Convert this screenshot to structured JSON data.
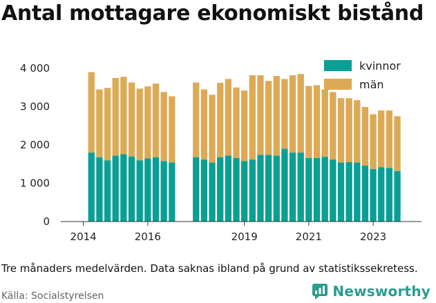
{
  "title": "Antal mottagare ekonomiskt bistånd",
  "note": "Tre månaders medelvärden. Data saknas ibland på grund av statistikssekretess.",
  "source": "Källa: Socialstyrelsen",
  "brand": {
    "name": "Newsworthy",
    "icon": "newsworthy-logo-icon"
  },
  "colors": {
    "kvinnor": "#0a9f94",
    "man": "#dcaa56",
    "axis": "#333333"
  },
  "chart_data": {
    "type": "bar",
    "stacked": true,
    "x_range": [
      2013.3,
      2024.5
    ],
    "ylim": [
      0,
      4000
    ],
    "yticks": [
      0,
      1000,
      2000,
      3000,
      4000
    ],
    "ytick_labels": [
      "0",
      "1 000",
      "2 000",
      "3 000",
      "4 000"
    ],
    "xticks": [
      2014,
      2016,
      2019,
      2021,
      2023
    ],
    "xtick_labels": [
      "2014",
      "2016",
      "2019",
      "2021",
      "2023"
    ],
    "legend_position": "top-right",
    "x": [
      2014.25,
      2014.5,
      2014.75,
      2015.0,
      2015.25,
      2015.5,
      2015.75,
      2016.0,
      2016.25,
      2016.5,
      2016.75,
      2017.5,
      2017.75,
      2018.0,
      2018.25,
      2018.5,
      2018.75,
      2019.0,
      2019.25,
      2019.5,
      2019.75,
      2020.0,
      2020.25,
      2020.5,
      2020.75,
      2021.0,
      2021.25,
      2021.5,
      2021.75,
      2022.0,
      2022.25,
      2022.5,
      2022.75,
      2023.0,
      2023.25,
      2023.5,
      2023.75
    ],
    "series": [
      {
        "name": "kvinnor",
        "values": [
          1800,
          1680,
          1600,
          1720,
          1760,
          1700,
          1600,
          1650,
          1680,
          1580,
          1540,
          1680,
          1620,
          1540,
          1680,
          1720,
          1660,
          1580,
          1620,
          1740,
          1740,
          1720,
          1900,
          1800,
          1800,
          1660,
          1660,
          1690,
          1620,
          1540,
          1550,
          1540,
          1460,
          1370,
          1420,
          1400,
          1320
        ]
      },
      {
        "name": "män",
        "values": [
          2100,
          1770,
          1890,
          2030,
          2020,
          1930,
          1870,
          1880,
          1920,
          1800,
          1730,
          1950,
          1830,
          1770,
          1940,
          2000,
          1840,
          1840,
          2200,
          2080,
          1930,
          2080,
          1820,
          2020,
          2050,
          1880,
          1900,
          1760,
          1760,
          1680,
          1670,
          1630,
          1530,
          1430,
          1480,
          1500,
          1430
        ]
      }
    ]
  }
}
